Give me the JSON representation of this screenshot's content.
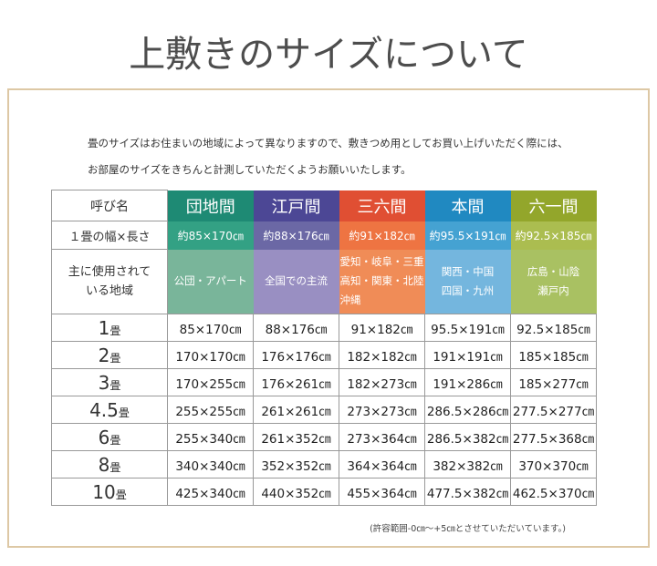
{
  "title": "上敷きのサイズについて",
  "intro": {
    "line1": "畳のサイズはお住まいの地域によって異なりますので、敷きつめ用としてお買い上げいただく際には、",
    "line2": "お部屋のサイズをきちんと計測していただくようお願いいたします。"
  },
  "table": {
    "corner_label": "呼び名",
    "width_row_label": "１畳の幅×長さ",
    "region_row_label_line1": "主に使用されて",
    "region_row_label_line2": "いる地域",
    "columns": [
      {
        "name": "団地間",
        "header_color": "#1e8a74",
        "width_color": "#33a184",
        "region_color": "#79b59a",
        "width": "約85×170㎝",
        "region_lines": [
          "公団・アパート"
        ]
      },
      {
        "name": "江戸間",
        "header_color": "#4c4795",
        "width_color": "#6b68a5",
        "region_color": "#998fc2",
        "width": "約88×176㎝",
        "region_lines": [
          "全国での主流"
        ]
      },
      {
        "name": "三六間",
        "header_color": "#e04f33",
        "width_color": "#ee7442",
        "region_color": "#f08c57",
        "width": "約91×182㎝",
        "region_lines": [
          "愛知・岐阜・三重",
          "高知・関東・北陸",
          "沖縄"
        ]
      },
      {
        "name": "本間",
        "header_color": "#2089c1",
        "width_color": "#45a2d2",
        "region_color": "#74b6de",
        "width": "約95.5×191㎝",
        "region_lines": [
          "関西・中国",
          "四国・九州"
        ]
      },
      {
        "name": "六一間",
        "header_color": "#93a62b",
        "width_color": "#abbd50",
        "region_color": "#a9c162",
        "width": "約92.5×185㎝",
        "region_lines": [
          "広島・山陰",
          "瀬戸内"
        ]
      }
    ],
    "size_unit": "畳",
    "size_rows": [
      {
        "label": "1",
        "values": [
          "85×170㎝",
          "88×176㎝",
          "91×182㎝",
          "95.5×191㎝",
          "92.5×185㎝"
        ]
      },
      {
        "label": "2",
        "values": [
          "170×170㎝",
          "176×176㎝",
          "182×182㎝",
          "191×191㎝",
          "185×185㎝"
        ]
      },
      {
        "label": "3",
        "values": [
          "170×255㎝",
          "176×261㎝",
          "182×273㎝",
          "191×286㎝",
          "185×277㎝"
        ]
      },
      {
        "label": "4.5",
        "values": [
          "255×255㎝",
          "261×261㎝",
          "273×273㎝",
          "286.5×286㎝",
          "277.5×277㎝"
        ]
      },
      {
        "label": "6",
        "values": [
          "255×340㎝",
          "261×352㎝",
          "273×364㎝",
          "286.5×382㎝",
          "277.5×368㎝"
        ]
      },
      {
        "label": "8",
        "values": [
          "340×340㎝",
          "352×352㎝",
          "364×364㎝",
          "382×382㎝",
          "370×370㎝"
        ]
      },
      {
        "label": "10",
        "values": [
          "425×340㎝",
          "440×352㎝",
          "455×364㎝",
          "477.5×382㎝",
          "462.5×370㎝"
        ]
      }
    ]
  },
  "footnote": "(許容範囲-0㎝〜+5㎝とさせていただいています。)"
}
